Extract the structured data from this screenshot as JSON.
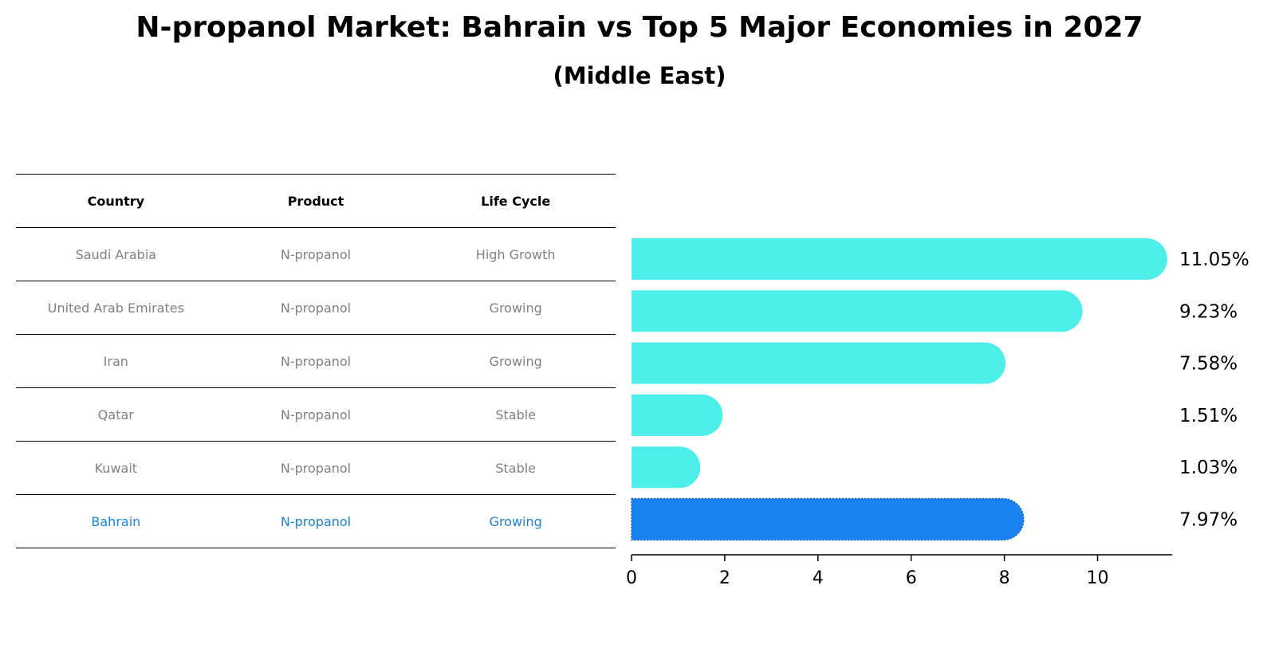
{
  "title": "N-propanol Market: Bahrain vs Top 5 Major Economies in 2027",
  "subtitle": "(Middle East)",
  "table": {
    "headers": [
      "Country",
      "Product",
      "Life Cycle"
    ],
    "rows": [
      {
        "country": "Saudi Arabia",
        "product": "N-propanol",
        "life_cycle": "High Growth"
      },
      {
        "country": "United Arab Emirates",
        "product": "N-propanol",
        "life_cycle": "Growing"
      },
      {
        "country": "Iran",
        "product": "N-propanol",
        "life_cycle": "Growing"
      },
      {
        "country": "Qatar",
        "product": "N-propanol",
        "life_cycle": "Stable"
      },
      {
        "country": "Kuwait",
        "product": "N-propanol",
        "life_cycle": "Stable"
      },
      {
        "country": "Bahrain",
        "product": "N-propanol",
        "life_cycle": "Growing"
      }
    ]
  },
  "colors": {
    "bar": "#4deeea",
    "highlight": "#1a82f0",
    "highlight_text": "#1a82e0"
  },
  "chart_data": {
    "type": "bar",
    "orientation": "horizontal",
    "title": "N-propanol Market: Bahrain vs Top 5 Major Economies in 2027",
    "subtitle": "(Middle East)",
    "categories": [
      "Saudi Arabia",
      "United Arab Emirates",
      "Iran",
      "Qatar",
      "Kuwait",
      "Bahrain"
    ],
    "values": [
      11.05,
      9.23,
      7.58,
      1.51,
      1.03,
      7.97
    ],
    "value_labels": [
      "11.05%",
      "9.23%",
      "7.58%",
      "1.51%",
      "1.03%",
      "7.97%"
    ],
    "highlight": "Bahrain",
    "xlim": [
      0,
      11.6
    ],
    "xticks": [
      0,
      2,
      4,
      6,
      8,
      10
    ],
    "xlabel": "",
    "ylabel": "",
    "grid": false
  }
}
